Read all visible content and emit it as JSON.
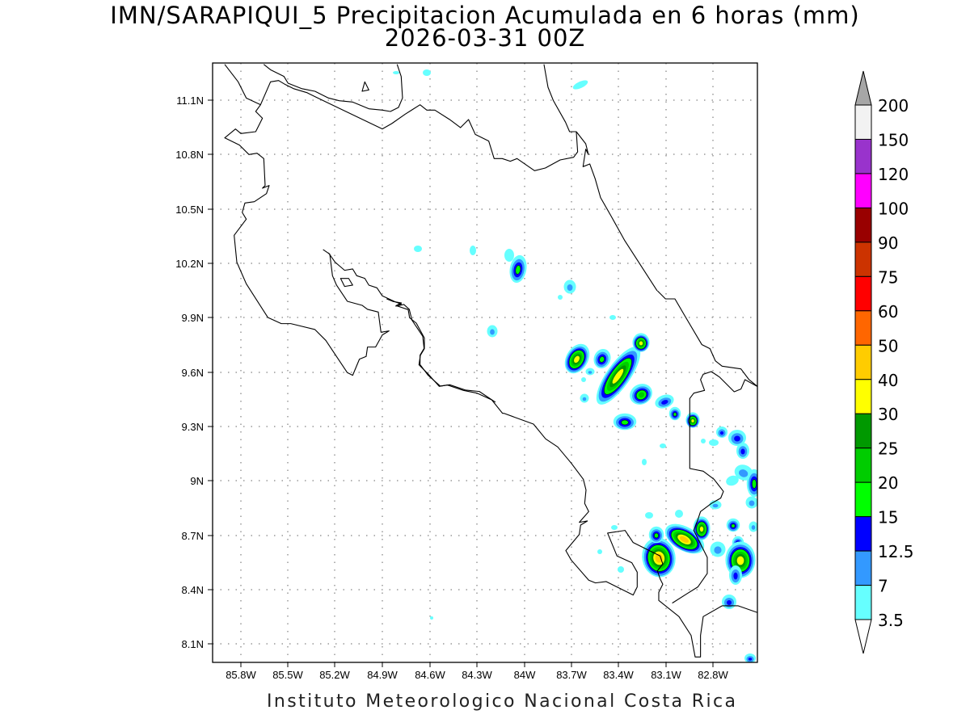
{
  "title": "IMN/SARAPIQUI_5 Precipitacion Acumulada en 6 horas (mm)",
  "subtitle": "2026-03-31 00Z",
  "footer": "Instituto Meteorologico Nacional Costa Rica",
  "map": {
    "lat_ticks": [
      "11.1N",
      "10.8N",
      "10.5N",
      "10.2N",
      "9.9N",
      "9.6N",
      "9.3N",
      "9N",
      "8.7N",
      "8.4N",
      "8.1N"
    ],
    "lon_ticks": [
      "85.8W",
      "85.5W",
      "85.2W",
      "84.9W",
      "84.6W",
      "84.3W",
      "84W",
      "83.7W",
      "83.4W",
      "83.1W",
      "82.8W"
    ],
    "extent": {
      "lon_min": -85.98,
      "lon_max": -82.52,
      "lat_min": 8.0,
      "lat_max": 11.3
    }
  },
  "colorbar": {
    "labels": [
      "200",
      "150",
      "120",
      "100",
      "90",
      "75",
      "60",
      "50",
      "40",
      "30",
      "25",
      "20",
      "15",
      "12.5",
      "7",
      "3.5"
    ],
    "colors": [
      "#f2f2f2",
      "#9933cc",
      "#ff00ff",
      "#990000",
      "#cc3300",
      "#ff0000",
      "#ff6600",
      "#ffcc00",
      "#ffff00",
      "#009900",
      "#00cc00",
      "#00ff00",
      "#0000ff",
      "#3399ff",
      "#66ffff"
    ],
    "over_color": "#a6a6a6",
    "under_color": "#ffffff"
  }
}
